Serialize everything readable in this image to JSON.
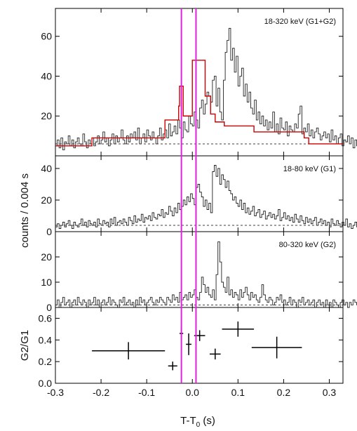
{
  "chart_data": {
    "type": "step",
    "xlabel_main": "T-T",
    "xlabel_sub": "0",
    "xlabel_unit": " (s)",
    "shared_ylabel": "counts / 0.004 s",
    "xlim": [
      -0.3,
      0.33
    ],
    "x_ticks": [
      -0.3,
      -0.2,
      -0.1,
      0.0,
      0.1,
      0.2,
      0.3
    ],
    "x_tick_labels": [
      "-0.3",
      "-0.2",
      "-0.1",
      "0.0",
      "0.1",
      "0.2",
      "0.3"
    ],
    "vertical_markers": [
      -0.024,
      0.008
    ],
    "marker_color": "#e020e0",
    "bin_width": 0.004,
    "x_start": -0.3,
    "panels": [
      {
        "label": "18-320 keV (G1+G2)",
        "ylim": [
          0,
          74
        ],
        "y_ticks": [
          20,
          40,
          60
        ],
        "y_tick_labels": [
          "20",
          "40",
          "60"
        ],
        "background_level": 6,
        "series": [
          {
            "name": "",
            "values": [
              5,
              8,
              4,
              9,
              3,
              7,
              6,
              10,
              5,
              8,
              4,
              7,
              9,
              6,
              5,
              11,
              7,
              4,
              8,
              6,
              9,
              5,
              7,
              10,
              6,
              8,
              12,
              7,
              9,
              5,
              8,
              11,
              6,
              10,
              7,
              9,
              13,
              8,
              6,
              10,
              7,
              11,
              9,
              12,
              8,
              14,
              6,
              9,
              11,
              7,
              13,
              10,
              8,
              12,
              9,
              6,
              10,
              14,
              8,
              11,
              13,
              9,
              16,
              10,
              12,
              15,
              11,
              18,
              14,
              9,
              17,
              13,
              12,
              20,
              16,
              15,
              22,
              18,
              14,
              24,
              28,
              21,
              26,
              32,
              30,
              27,
              38,
              40,
              25,
              34,
              22,
              18,
              38,
              52,
              58,
              64,
              48,
              54,
              42,
              50,
              35,
              40,
              44,
              30,
              36,
              27,
              32,
              24,
              21,
              28,
              18,
              22,
              16,
              20,
              15,
              18,
              13,
              17,
              14,
              22,
              12,
              16,
              11,
              19,
              14,
              13,
              17,
              10,
              15,
              13,
              12,
              16,
              14,
              21,
              25,
              11,
              14,
              12,
              16,
              10,
              13,
              9,
              12,
              14,
              11,
              8,
              10,
              12,
              9,
              11,
              7,
              13,
              8,
              10,
              6,
              9,
              11,
              5,
              8,
              7,
              10,
              6,
              9,
              4,
              8,
              5
            ]
          },
          {
            "name": "",
            "values": [
              [
                -0.3,
                5
              ],
              [
                -0.22,
                9
              ],
              [
                -0.06,
                18
              ],
              [
                -0.03,
                25
              ],
              [
                -0.028,
                35
              ],
              [
                -0.02,
                20
              ],
              [
                0.0,
                48
              ],
              [
                0.016,
                48
              ],
              [
                0.028,
                30
              ],
              [
                0.04,
                21
              ],
              [
                0.05,
                17
              ],
              [
                0.07,
                15
              ],
              [
                0.135,
                12
              ],
              [
                0.16,
                12
              ],
              [
                0.245,
                9
              ],
              [
                0.255,
                6
              ],
              [
                0.33,
                6
              ]
            ],
            "color": "#cc0000"
          }
        ]
      },
      {
        "label": "18-80 keV (G1)",
        "ylim": [
          0,
          48
        ],
        "y_ticks": [
          0,
          20,
          40
        ],
        "y_tick_labels": [
          "0",
          "20",
          "40"
        ],
        "background_level": 4,
        "series": [
          {
            "name": "",
            "values": [
              3,
              5,
              2,
              4,
              6,
              3,
              5,
              7,
              4,
              2,
              6,
              4,
              3,
              5,
              8,
              4,
              6,
              3,
              7,
              5,
              4,
              6,
              3,
              8,
              5,
              4,
              7,
              5,
              6,
              3,
              8,
              5,
              9,
              4,
              6,
              7,
              5,
              8,
              6,
              4,
              9,
              7,
              5,
              10,
              6,
              8,
              7,
              11,
              6,
              9,
              8,
              10,
              7,
              12,
              9,
              8,
              11,
              10,
              14,
              9,
              12,
              11,
              16,
              13,
              10,
              15,
              12,
              18,
              14,
              16,
              20,
              17,
              22,
              19,
              24,
              21,
              17,
              28,
              30,
              25,
              22,
              16,
              20,
              14,
              18,
              12,
              38,
              42,
              35,
              40,
              30,
              36,
              33,
              28,
              32,
              26,
              24,
              20,
              22,
              18,
              16,
              20,
              14,
              18,
              12,
              15,
              11,
              13,
              16,
              10,
              12,
              14,
              9,
              11,
              13,
              8,
              10,
              12,
              9,
              11,
              8,
              10,
              14,
              7,
              9,
              12,
              8,
              10,
              7,
              9,
              6,
              11,
              8,
              6,
              10,
              7,
              5,
              9,
              6,
              8,
              5,
              7,
              9,
              4,
              6,
              8,
              5,
              7,
              4,
              6,
              3,
              8,
              5,
              4,
              7,
              5,
              3,
              6,
              4,
              8,
              3,
              5,
              2,
              4,
              6,
              3
            ]
          }
        ]
      },
      {
        "label": "80-320 keV (G2)",
        "ylim": [
          0,
          30
        ],
        "y_ticks": [
          0,
          10,
          20
        ],
        "y_tick_labels": [
          "0",
          "10",
          "20"
        ],
        "background_level": 1,
        "series": [
          {
            "name": "",
            "values": [
              1,
              3,
              0,
              2,
              4,
              1,
              2,
              3,
              0,
              2,
              3,
              1,
              4,
              2,
              1,
              3,
              2,
              0,
              3,
              1,
              2,
              4,
              1,
              3,
              0,
              2,
              3,
              1,
              2,
              4,
              1,
              3,
              2,
              1,
              0,
              3,
              2,
              4,
              1,
              2,
              3,
              1,
              2,
              0,
              3,
              1,
              4,
              2,
              3,
              1,
              2,
              3,
              4,
              2,
              1,
              3,
              2,
              4,
              3,
              2,
              1,
              4,
              3,
              2,
              5,
              3,
              4,
              2,
              6,
              3,
              4,
              5,
              3,
              6,
              4,
              5,
              7,
              4,
              3,
              6,
              12,
              9,
              6,
              8,
              5,
              4,
              7,
              3,
              13,
              26,
              18,
              10,
              8,
              6,
              12,
              5,
              7,
              4,
              6,
              5,
              3,
              7,
              4,
              6,
              8,
              5,
              3,
              6,
              4,
              5,
              3,
              2,
              4,
              9,
              5,
              3,
              2,
              4,
              3,
              1,
              2,
              4,
              3,
              5,
              2,
              3,
              1,
              2,
              4,
              1,
              3,
              2,
              0,
              3,
              2,
              4,
              1,
              2,
              3,
              1,
              2,
              3,
              0,
              2,
              3,
              1,
              2,
              0,
              3,
              1,
              2,
              0,
              3,
              2,
              1,
              0,
              2,
              3,
              1,
              2,
              0,
              2,
              1,
              3,
              2,
              1
            ]
          }
        ]
      },
      {
        "label": "",
        "ylabel": "G2/G1",
        "ylim": [
          0,
          0.7
        ],
        "y_ticks": [
          0.0,
          0.2,
          0.4,
          0.6
        ],
        "y_tick_labels": [
          "0.0",
          "0.2",
          "0.4",
          "0.6"
        ],
        "type": "errorbar",
        "series": [
          {
            "name": "",
            "points": [
              {
                "x": -0.14,
                "xerr": 0.08,
                "y": 0.3,
                "yerr": 0.08
              },
              {
                "x": -0.043,
                "xerr": 0.01,
                "y": 0.16,
                "yerr": 0.04
              },
              {
                "x": -0.024,
                "xerr": 0.004,
                "y": 0.46,
                "yerr": 0.06
              },
              {
                "x": -0.008,
                "xerr": 0.006,
                "y": 0.36,
                "yerr": 0.1
              },
              {
                "x": 0.016,
                "xerr": 0.012,
                "y": 0.44,
                "yerr": 0.05
              },
              {
                "x": 0.05,
                "xerr": 0.012,
                "y": 0.27,
                "yerr": 0.05
              },
              {
                "x": 0.1,
                "xerr": 0.035,
                "y": 0.5,
                "yerr": 0.07
              },
              {
                "x": 0.185,
                "xerr": 0.055,
                "y": 0.33,
                "yerr": 0.1
              }
            ]
          }
        ]
      }
    ]
  }
}
